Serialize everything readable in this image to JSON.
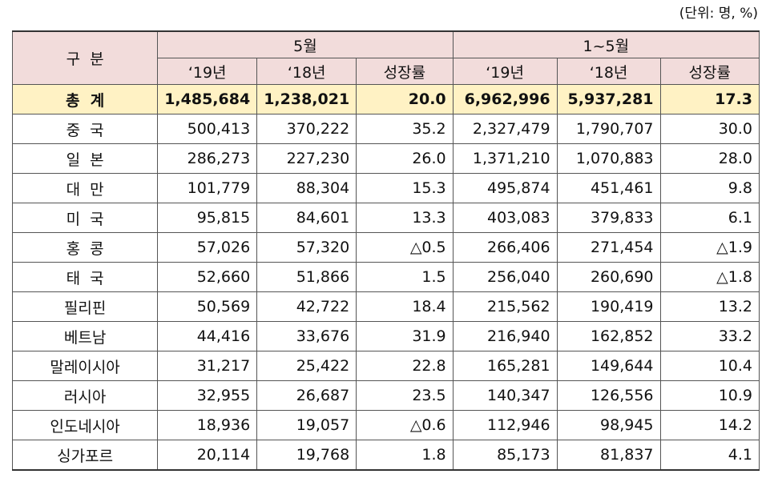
{
  "unit": "(단위: 명, %)",
  "table": {
    "header": {
      "label": "구  분",
      "groups": [
        "5월",
        "1~5월"
      ],
      "sub": [
        "‘19년",
        "‘18년",
        "성장률",
        "‘19년",
        "‘18년",
        "성장률"
      ]
    },
    "rows": [
      [
        "총  계",
        "1,485,684",
        "1,238,021",
        "20.0",
        "6,962,996",
        "5,937,281",
        "17.3"
      ],
      [
        "중  국",
        "500,413",
        "370,222",
        "35.2",
        "2,327,479",
        "1,790,707",
        "30.0"
      ],
      [
        "일  본",
        "286,273",
        "227,230",
        "26.0",
        "1,371,210",
        "1,070,883",
        "28.0"
      ],
      [
        "대  만",
        "101,779",
        "88,304",
        "15.3",
        "495,874",
        "451,461",
        "9.8"
      ],
      [
        "미  국",
        "95,815",
        "84,601",
        "13.3",
        "403,083",
        "379,833",
        "6.1"
      ],
      [
        "홍  콩",
        "57,026",
        "57,320",
        "△0.5",
        "266,406",
        "271,454",
        "△1.9"
      ],
      [
        "태  국",
        "52,660",
        "51,866",
        "1.5",
        "256,040",
        "260,690",
        "△1.8"
      ],
      [
        "필리핀",
        "50,569",
        "42,722",
        "18.4",
        "215,562",
        "190,419",
        "13.2"
      ],
      [
        "베트남",
        "44,416",
        "33,676",
        "31.9",
        "216,940",
        "162,852",
        "33.2"
      ],
      [
        "말레이시아",
        "31,217",
        "25,422",
        "22.8",
        "165,281",
        "149,644",
        "10.4"
      ],
      [
        "러시아",
        "32,955",
        "26,687",
        "23.5",
        "140,347",
        "126,556",
        "10.9"
      ],
      [
        "인도네시아",
        "18,936",
        "19,057",
        "△0.6",
        "112,946",
        "98,945",
        "14.2"
      ],
      [
        "싱가포르",
        "20,114",
        "19,768",
        "1.8",
        "85,173",
        "81,837",
        "4.1"
      ]
    ]
  }
}
